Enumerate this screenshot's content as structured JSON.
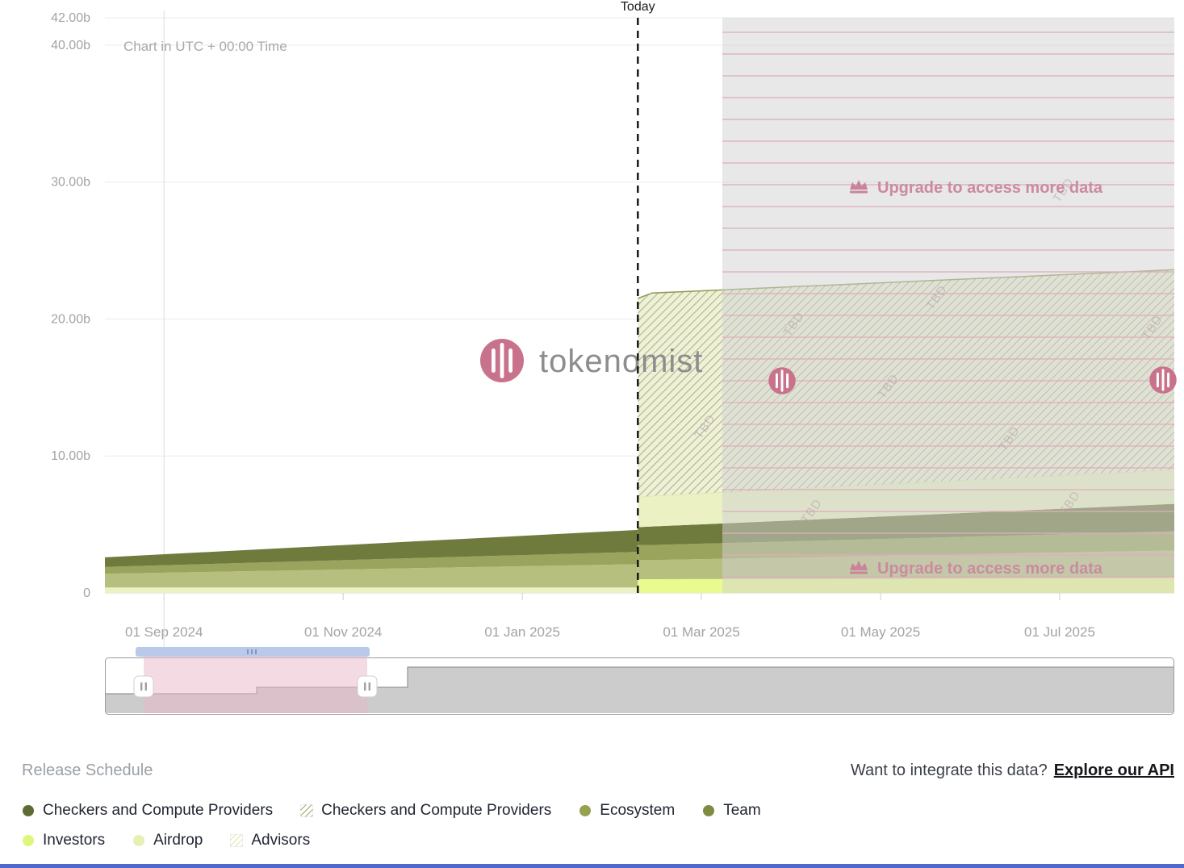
{
  "brand": {
    "name": "tokenomist",
    "pink": "#c9728b"
  },
  "chart": {
    "utc_note": "Chart in UTC + 00:00 Time",
    "today_label": "Today",
    "watermark_text": "tokenomist"
  },
  "paywall": {
    "upgrade_label": "Upgrade to access more data",
    "tbd_label": "TBD"
  },
  "footer": {
    "title": "Release Schedule",
    "api_prompt": "Want to integrate this data?",
    "api_link_label": "Explore our API",
    "legend": [
      {
        "label": "Checkers and Compute Providers",
        "type": "dot",
        "color": "#5f6b35"
      },
      {
        "label": "Checkers and Compute Providers",
        "type": "hatch",
        "color": "#8e9a52"
      },
      {
        "label": "Ecosystem",
        "type": "dot",
        "color": "#97a150"
      },
      {
        "label": "Team",
        "type": "dot",
        "color": "#7f8b41"
      },
      {
        "label": "Investors",
        "type": "dot",
        "color": "#ddf77d"
      },
      {
        "label": "Airdrop",
        "type": "dot",
        "color": "#e7efb4"
      },
      {
        "label": "Advisors",
        "type": "hatch",
        "color": "#d9e6a0"
      }
    ]
  },
  "chart_data": {
    "type": "area",
    "stacked": true,
    "unit": "billions of tokens",
    "title": "Release Schedule",
    "ylim": [
      0,
      42
    ],
    "y_ticks": [
      {
        "label": "42.00b",
        "value": 42
      },
      {
        "label": "40.00b",
        "value": 40
      },
      {
        "label": "30.00b",
        "value": 30
      },
      {
        "label": "20.00b",
        "value": 20
      },
      {
        "label": "10.00b",
        "value": 10
      },
      {
        "label": "0",
        "value": 0
      }
    ],
    "x_unit": "months since 2024-08-01",
    "x_domain": [
      0.34,
      12.28
    ],
    "x_ticks": [
      {
        "label": "01 Sep 2024",
        "m": 1
      },
      {
        "label": "01 Nov 2024",
        "m": 3
      },
      {
        "label": "01 Jan 2025",
        "m": 5
      },
      {
        "label": "01 Mar 2025",
        "m": 7
      },
      {
        "label": "01 May 2025",
        "m": 9
      },
      {
        "label": "01 Jul 2025",
        "m": 11
      }
    ],
    "today_m": 6.29,
    "segments": [
      {
        "name": "unlocked-history",
        "x": [
          0.34,
          6.29
        ],
        "series": [
          {
            "name": "Airdrop",
            "color": "#ebf1c2",
            "values": [
              0.4,
              0.4
            ]
          },
          {
            "name": "Ecosystem",
            "color": "#b7bf7e",
            "values": [
              1.0,
              1.7
            ]
          },
          {
            "name": "Team",
            "color": "#9aa45c",
            "values": [
              0.5,
              0.9
            ]
          },
          {
            "name": "Checkers and Compute Providers",
            "color": "#6f7b3d",
            "values": [
              0.7,
              1.6
            ]
          }
        ]
      },
      {
        "name": "upcoming-unlocks",
        "x": [
          6.29,
          6.45,
          12.28
        ],
        "series": [
          {
            "name": "Investors",
            "color": "#e9fa8e",
            "values": [
              1.0,
              1.0,
              1.1
            ]
          },
          {
            "name": "Ecosystem",
            "color": "#b7bf7e",
            "values": [
              1.4,
              1.4,
              2.0
            ]
          },
          {
            "name": "Team",
            "color": "#9aa45c",
            "values": [
              1.1,
              1.1,
              1.4
            ]
          },
          {
            "name": "Checkers and Compute Providers",
            "color": "#6f7b3d",
            "values": [
              1.3,
              1.35,
              2.0
            ]
          },
          {
            "name": "Airdrop",
            "color": "#ebf1c2",
            "values": [
              2.2,
              2.25,
              2.5
            ],
            "top_stroke": "#dce8a8"
          },
          {
            "name": "Checkers and Compute Providers (upcoming)",
            "pattern": "hatch-olive",
            "values": [
              14.5,
              14.8,
              14.6
            ],
            "top_stroke": "#8e9a52"
          }
        ]
      }
    ]
  }
}
